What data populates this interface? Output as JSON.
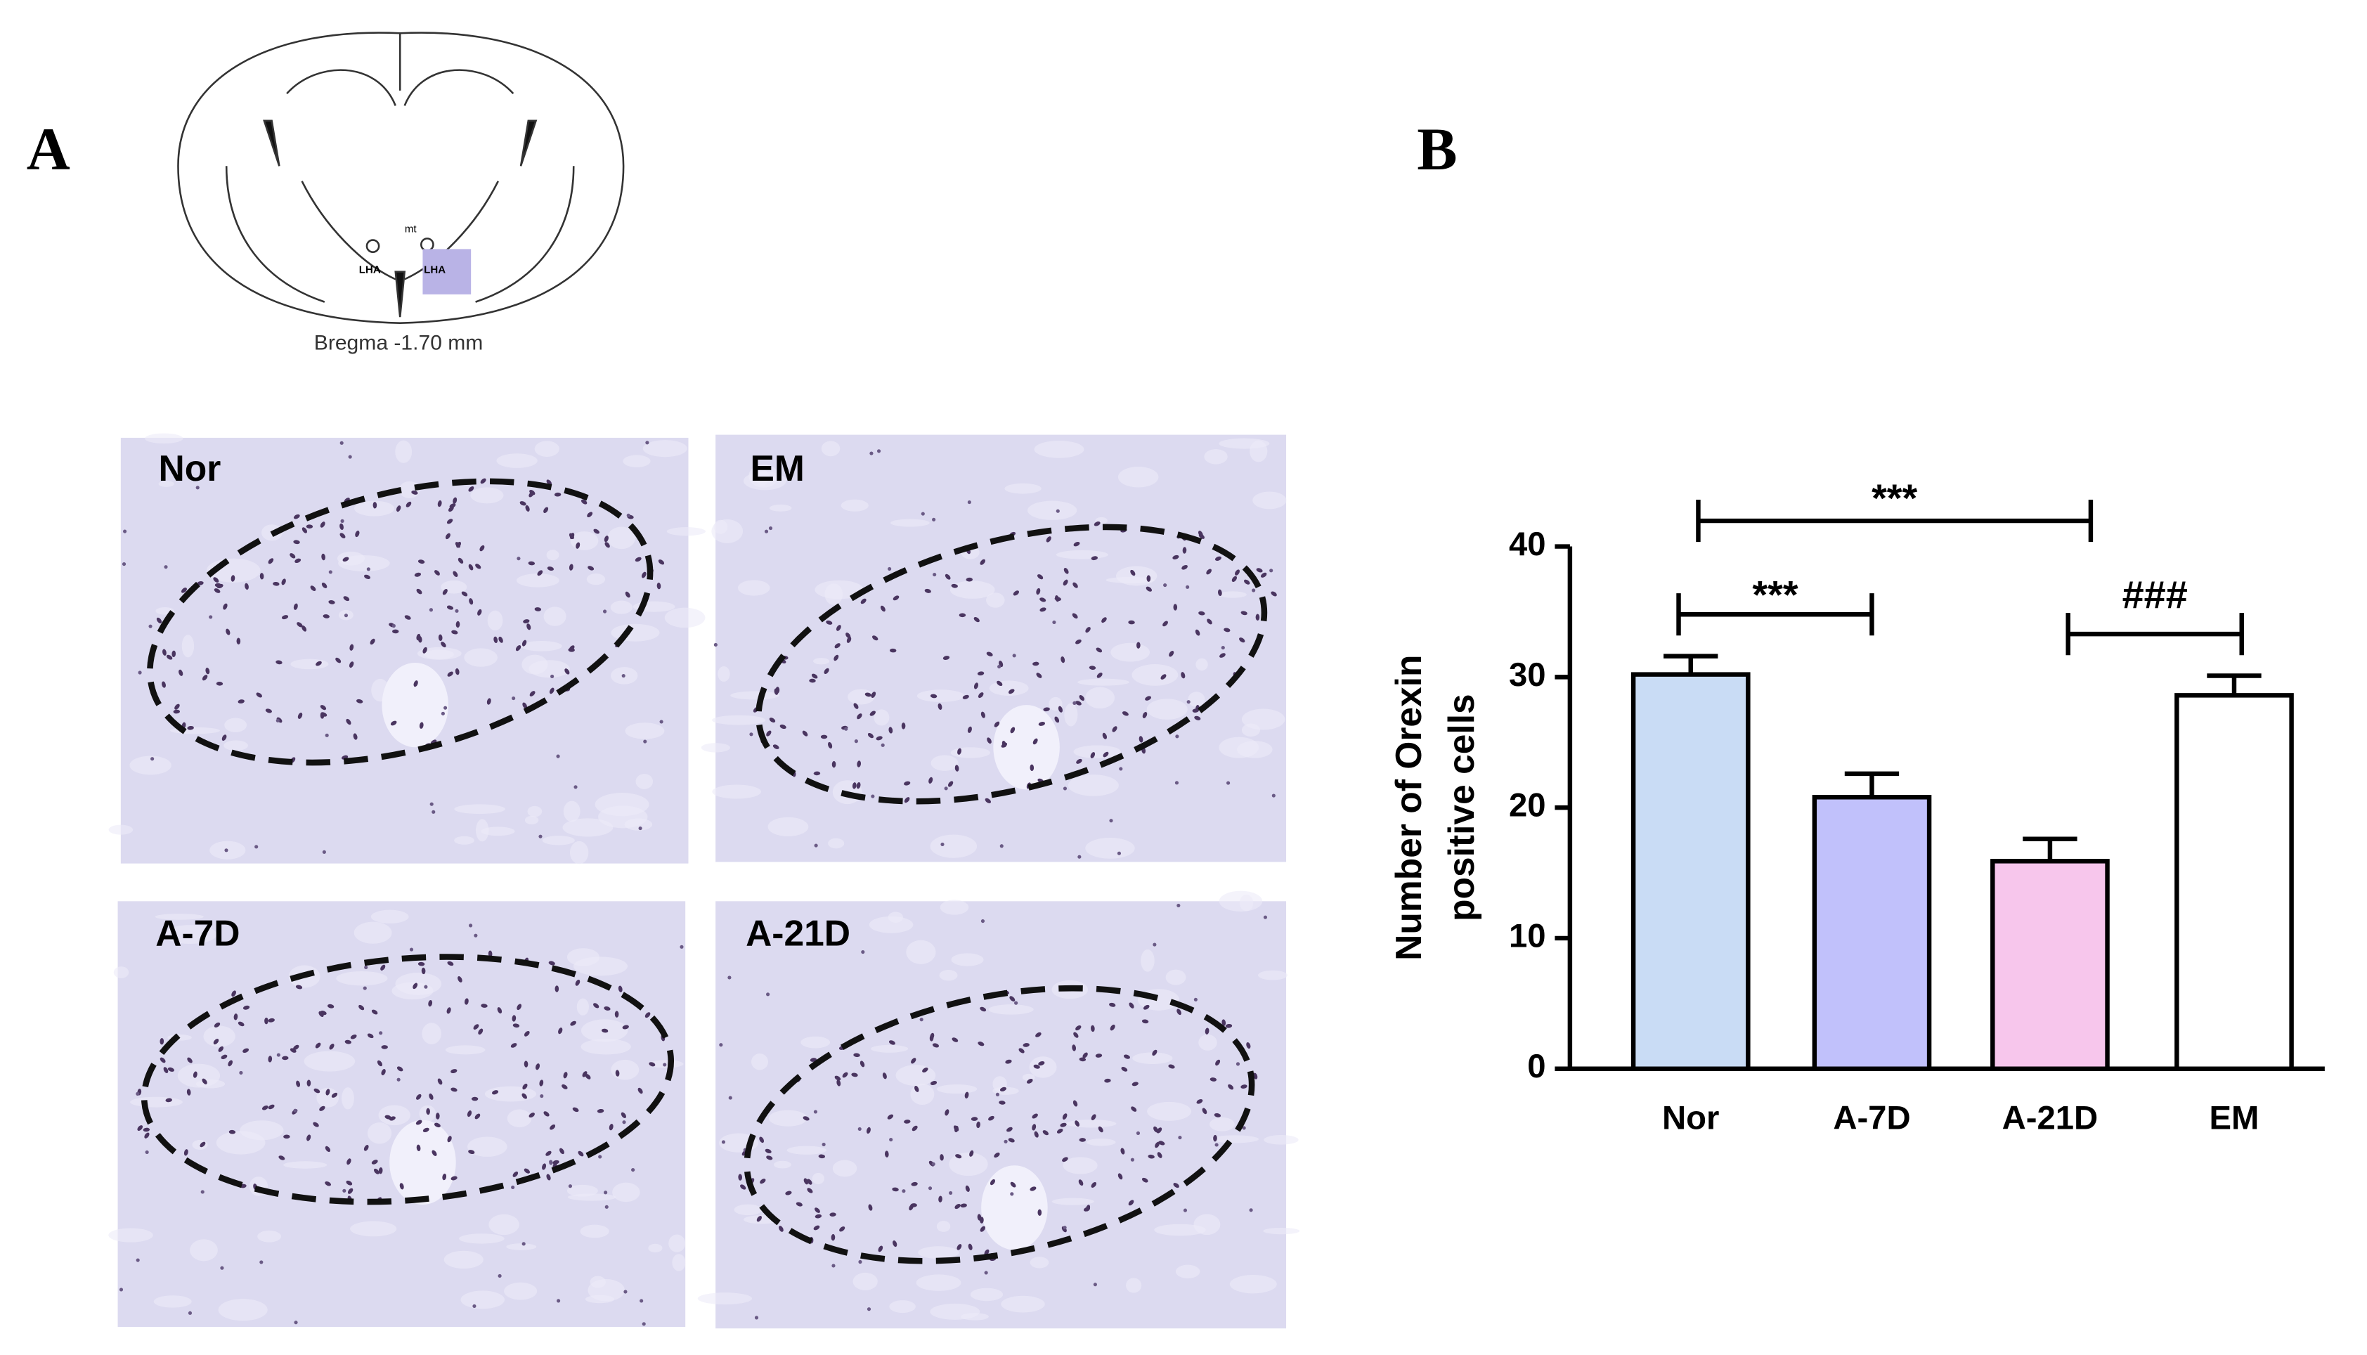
{
  "panel_labels": [
    "A",
    "B"
  ],
  "diagram": {
    "caption": "Bregma -1.70 mm",
    "region_labels": [
      "LHA",
      "LHA",
      "mt"
    ]
  },
  "micrographs": [
    "Nor",
    "EM",
    "A-7D",
    "A-21D"
  ],
  "chart_data": {
    "type": "bar",
    "y_label": [
      "Number of Orexin",
      "positive cells"
    ],
    "categories": [
      "Nor",
      "A-7D",
      "A-21D",
      "EM"
    ],
    "values": [
      30.2,
      20.8,
      15.9,
      28.6
    ],
    "errors": [
      1.4,
      1.8,
      1.7,
      1.5
    ],
    "colors": [
      "#c9dcf5",
      "#c1c1fb",
      "#f7c6ec",
      "#ffffff"
    ],
    "ylim": [
      0,
      40
    ],
    "yticks": [
      0,
      10,
      20,
      30,
      40
    ],
    "annotations": [
      {
        "text": "***",
        "from": "Nor",
        "to": "A-21D"
      },
      {
        "text": "***",
        "from": "Nor",
        "to": "A-7D"
      },
      {
        "text": "###",
        "from": "A-21D",
        "to": "EM"
      }
    ]
  }
}
